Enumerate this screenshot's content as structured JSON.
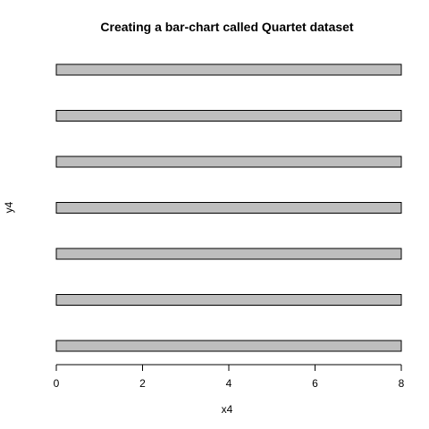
{
  "chart_data": {
    "type": "bar",
    "orientation": "horizontal",
    "title": "Creating a bar-chart called Quartet dataset",
    "xlabel": "x4",
    "ylabel": "y4",
    "xlim": [
      0,
      8
    ],
    "x_ticks": [
      0,
      2,
      4,
      6,
      8
    ],
    "y_ticks_shown": false,
    "values": [
      8,
      8,
      8,
      8,
      8,
      8,
      8
    ],
    "grid": false,
    "legend": "none",
    "colors": {
      "bar_fill": "#bebebe",
      "bar_stroke": "#000000"
    }
  }
}
